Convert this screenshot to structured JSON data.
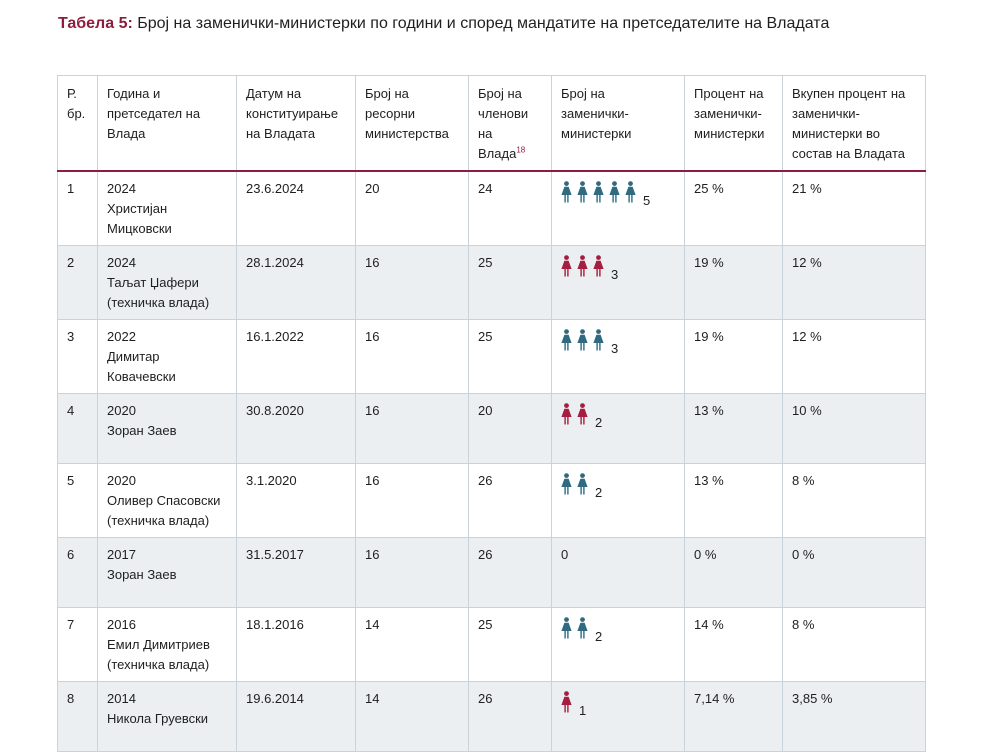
{
  "title": {
    "prefix": "Табела 5:",
    "text": "Број на заменички-министерки по години и според мандатите на претседателите на Владата"
  },
  "colors": {
    "accent": "#8c1d3e",
    "icon_teal": "#2e6b80",
    "icon_red": "#a51d3f",
    "row_alt": "#ebeff2",
    "border": "#c9d3dc"
  },
  "headers": {
    "no": "Р. бр.",
    "year": "Година и претседател на Влада",
    "date": "Датум на конституирање на Владата",
    "ministries": "Број на ресорни министерства",
    "members": "Број на членови на Влада",
    "members_footnote": "18",
    "deputies": "Број на заменички-министерки",
    "percent": "Процент на заменички-министерки",
    "total_percent": "Вкупен процент на заменички-министерки во состав на Владата"
  },
  "rows": [
    {
      "no": "1",
      "year": "2024",
      "pm": "Христијан Мицковски",
      "note": "",
      "date": "23.6.2024",
      "ministries": "20",
      "members": "24",
      "deputies_count": 5,
      "deputies_label": "5",
      "icon_color": "teal",
      "icon_name": "woman-icon",
      "percent": "25 %",
      "total": "21 %"
    },
    {
      "no": "2",
      "year": "2024",
      "pm": "Таљат Џафери",
      "note": "(техничка влада)",
      "date": "28.1.2024",
      "ministries": "16",
      "members": "25",
      "deputies_count": 3,
      "deputies_label": "3",
      "icon_color": "red",
      "icon_name": "woman-icon",
      "percent": "19 %",
      "total": "12 %"
    },
    {
      "no": "3",
      "year": "2022",
      "pm": "Димитар Ковачевски",
      "note": "",
      "date": "16.1.2022",
      "ministries": "16",
      "members": "25",
      "deputies_count": 3,
      "deputies_label": "3",
      "icon_color": "teal",
      "icon_name": "woman-icon",
      "percent": "19 %",
      "total": "12 %"
    },
    {
      "no": "4",
      "year": "2020",
      "pm": "Зоран Заев",
      "note": "",
      "date": "30.8.2020",
      "ministries": "16",
      "members": "20",
      "deputies_count": 2,
      "deputies_label": "2",
      "icon_color": "red",
      "icon_name": "woman-icon",
      "percent": "13 %",
      "total": "10 %"
    },
    {
      "no": "5",
      "year": "2020",
      "pm": "Оливер Спасовски",
      "note": "(техничка влада)",
      "date": "3.1.2020",
      "ministries": "16",
      "members": "26",
      "deputies_count": 2,
      "deputies_label": "2",
      "icon_color": "teal",
      "icon_name": "woman-icon",
      "percent": "13 %",
      "total": "8 %"
    },
    {
      "no": "6",
      "year": "2017",
      "pm": "Зоран Заев",
      "note": "",
      "date": "31.5.2017",
      "ministries": "16",
      "members": "26",
      "deputies_count": 0,
      "deputies_label": "0",
      "icon_color": "teal",
      "icon_name": "woman-icon",
      "percent": "0 %",
      "total": "0 %"
    },
    {
      "no": "7",
      "year": "2016",
      "pm": "Емил Димитриев",
      "note": "(техничка влада)",
      "date": "18.1.2016",
      "ministries": "14",
      "members": "25",
      "deputies_count": 2,
      "deputies_label": "2",
      "icon_color": "teal",
      "icon_name": "woman-icon",
      "percent": "14 %",
      "total": "8 %"
    },
    {
      "no": "8",
      "year": "2014",
      "pm": "Никола Груевски",
      "note": "",
      "date": "19.6.2014",
      "ministries": "14",
      "members": "26",
      "deputies_count": 1,
      "deputies_label": "1",
      "icon_color": "red",
      "icon_name": "woman-icon",
      "percent": "7,14 %",
      "total": "3,85 %"
    }
  ]
}
